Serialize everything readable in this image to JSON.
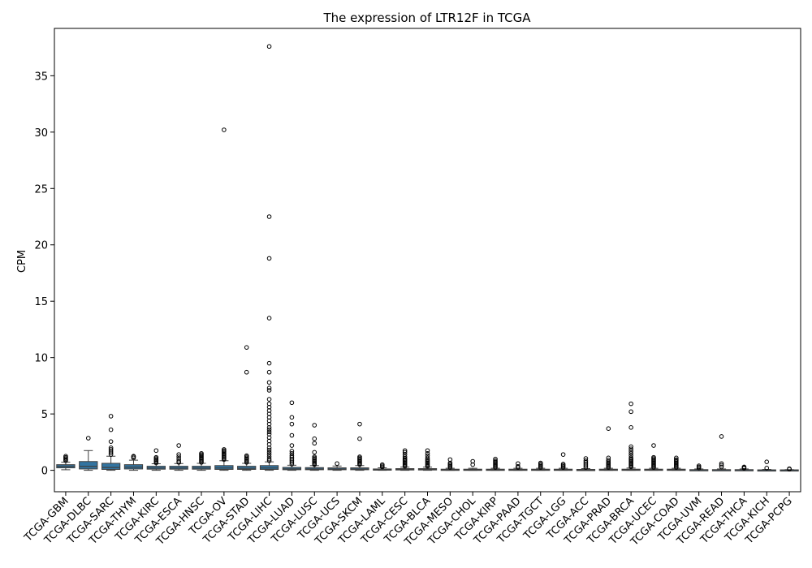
{
  "chart_data": {
    "type": "box",
    "title": "The expression of LTR12F in TCGA",
    "xlabel": "",
    "ylabel": "CPM",
    "ylim": [
      -1.9,
      39.2
    ],
    "yticks": [
      0,
      5,
      10,
      15,
      20,
      25,
      30,
      35
    ],
    "grid": false,
    "box_color": "#3274a1",
    "categories": [
      "TCGA-GBM",
      "TCGA-DLBC",
      "TCGA-SARC",
      "TCGA-THYM",
      "TCGA-KIRC",
      "TCGA-ESCA",
      "TCGA-HNSC",
      "TCGA-OV",
      "TCGA-STAD",
      "TCGA-LIHC",
      "TCGA-LUAD",
      "TCGA-LUSC",
      "TCGA-UCS",
      "TCGA-SKCM",
      "TCGA-LAML",
      "TCGA-CESC",
      "TCGA-BLCA",
      "TCGA-MESO",
      "TCGA-CHOL",
      "TCGA-KIRP",
      "TCGA-PAAD",
      "TCGA-TGCT",
      "TCGA-LGG",
      "TCGA-ACC",
      "TCGA-PRAD",
      "TCGA-BRCA",
      "TCGA-UCEC",
      "TCGA-COAD",
      "TCGA-UVM",
      "TCGA-READ",
      "TCGA-THCA",
      "TCGA-KICH",
      "TCGA-PCPG"
    ],
    "boxes": [
      {
        "whislo": 0.05,
        "q1": 0.22,
        "med": 0.35,
        "q3": 0.5,
        "whishi": 0.72,
        "fliers": [
          0.85,
          0.95,
          1.05,
          1.15,
          1.25
        ]
      },
      {
        "whislo": 0.0,
        "q1": 0.12,
        "med": 0.35,
        "q3": 0.78,
        "whishi": 1.75,
        "fliers": [
          2.85
        ]
      },
      {
        "whislo": 0.0,
        "q1": 0.08,
        "med": 0.25,
        "q3": 0.62,
        "whishi": 1.25,
        "fliers": [
          1.4,
          1.55,
          1.7,
          1.85,
          2.0,
          2.55,
          3.6,
          4.8
        ]
      },
      {
        "whislo": 0.0,
        "q1": 0.12,
        "med": 0.28,
        "q3": 0.5,
        "whishi": 0.9,
        "fliers": [
          1.1,
          1.2,
          1.25
        ]
      },
      {
        "whislo": 0.0,
        "q1": 0.1,
        "med": 0.2,
        "q3": 0.36,
        "whishi": 0.58,
        "fliers": [
          0.65,
          0.75,
          0.85,
          0.95,
          1.05,
          1.15,
          1.75
        ]
      },
      {
        "whislo": 0.0,
        "q1": 0.1,
        "med": 0.2,
        "q3": 0.36,
        "whishi": 0.6,
        "fliers": [
          0.7,
          0.8,
          1.0,
          1.2,
          1.4,
          2.2
        ]
      },
      {
        "whislo": 0.0,
        "q1": 0.1,
        "med": 0.2,
        "q3": 0.36,
        "whishi": 0.62,
        "fliers": [
          0.7,
          0.8,
          0.9,
          1.0,
          1.1,
          1.2,
          1.3,
          1.4,
          1.5
        ]
      },
      {
        "whislo": 0.0,
        "q1": 0.08,
        "med": 0.2,
        "q3": 0.42,
        "whishi": 0.85,
        "fliers": [
          0.95,
          1.05,
          1.15,
          1.25,
          1.35,
          1.45,
          1.55,
          1.65,
          1.75,
          1.85,
          30.2
        ]
      },
      {
        "whislo": 0.0,
        "q1": 0.08,
        "med": 0.18,
        "q3": 0.36,
        "whishi": 0.62,
        "fliers": [
          0.7,
          0.8,
          0.9,
          1.0,
          1.1,
          1.2,
          1.3,
          8.7,
          10.9
        ]
      },
      {
        "whislo": 0.0,
        "q1": 0.08,
        "med": 0.2,
        "q3": 0.42,
        "whishi": 0.75,
        "fliers": [
          0.85,
          1.0,
          1.2,
          1.4,
          1.6,
          1.8,
          2.0,
          2.3,
          2.6,
          2.9,
          3.2,
          3.4,
          3.6,
          3.8,
          4.1,
          4.4,
          4.7,
          5.0,
          5.3,
          5.6,
          5.9,
          6.3,
          7.1,
          7.3,
          7.8,
          8.7,
          9.5,
          13.5,
          18.8,
          22.5,
          37.6
        ]
      },
      {
        "whislo": 0.0,
        "q1": 0.05,
        "med": 0.13,
        "q3": 0.26,
        "whishi": 0.45,
        "fliers": [
          0.55,
          0.7,
          0.85,
          1.0,
          1.15,
          1.3,
          1.5,
          1.7,
          2.2,
          3.1,
          4.1,
          4.7,
          6.0
        ]
      },
      {
        "whislo": 0.0,
        "q1": 0.05,
        "med": 0.12,
        "q3": 0.24,
        "whishi": 0.42,
        "fliers": [
          0.5,
          0.6,
          0.7,
          0.8,
          0.9,
          1.0,
          1.1,
          1.2,
          1.6,
          2.4,
          2.8,
          4.0
        ]
      },
      {
        "whislo": 0.0,
        "q1": 0.05,
        "med": 0.12,
        "q3": 0.22,
        "whishi": 0.38,
        "fliers": [
          0.6
        ]
      },
      {
        "whislo": 0.0,
        "q1": 0.05,
        "med": 0.12,
        "q3": 0.22,
        "whishi": 0.42,
        "fliers": [
          0.5,
          0.6,
          0.7,
          0.8,
          0.9,
          1.0,
          1.1,
          1.2,
          2.8,
          4.1
        ]
      },
      {
        "whislo": 0.0,
        "q1": 0.02,
        "med": 0.06,
        "q3": 0.12,
        "whishi": 0.22,
        "fliers": [
          0.3,
          0.4,
          0.5
        ]
      },
      {
        "whislo": 0.0,
        "q1": 0.03,
        "med": 0.08,
        "q3": 0.15,
        "whishi": 0.28,
        "fliers": [
          0.35,
          0.45,
          0.55,
          0.65,
          0.75,
          0.85,
          0.95,
          1.05,
          1.2,
          1.4,
          1.6,
          1.75
        ]
      },
      {
        "whislo": 0.0,
        "q1": 0.03,
        "med": 0.08,
        "q3": 0.15,
        "whishi": 0.28,
        "fliers": [
          0.35,
          0.45,
          0.55,
          0.65,
          0.75,
          0.85,
          0.95,
          1.1,
          1.3,
          1.5,
          1.75
        ]
      },
      {
        "whislo": 0.0,
        "q1": 0.02,
        "med": 0.05,
        "q3": 0.1,
        "whishi": 0.18,
        "fliers": [
          0.25,
          0.35,
          0.45,
          0.55,
          0.65,
          0.95
        ]
      },
      {
        "whislo": 0.0,
        "q1": 0.02,
        "med": 0.05,
        "q3": 0.1,
        "whishi": 0.18,
        "fliers": [
          0.5,
          0.8
        ]
      },
      {
        "whislo": 0.0,
        "q1": 0.02,
        "med": 0.05,
        "q3": 0.1,
        "whishi": 0.18,
        "fliers": [
          0.25,
          0.35,
          0.45,
          0.55,
          0.65,
          0.75,
          0.85,
          1.0
        ]
      },
      {
        "whislo": 0.0,
        "q1": 0.02,
        "med": 0.05,
        "q3": 0.1,
        "whishi": 0.18,
        "fliers": [
          0.25,
          0.35,
          0.6
        ]
      },
      {
        "whislo": 0.0,
        "q1": 0.02,
        "med": 0.05,
        "q3": 0.1,
        "whishi": 0.18,
        "fliers": [
          0.25,
          0.35,
          0.45,
          0.55,
          0.65
        ]
      },
      {
        "whislo": 0.0,
        "q1": 0.02,
        "med": 0.05,
        "q3": 0.1,
        "whishi": 0.18,
        "fliers": [
          0.25,
          0.35,
          0.45,
          0.55,
          1.4
        ]
      },
      {
        "whislo": 0.0,
        "q1": 0.02,
        "med": 0.04,
        "q3": 0.08,
        "whishi": 0.15,
        "fliers": [
          0.25,
          0.4,
          0.55,
          0.7,
          0.85,
          1.05
        ]
      },
      {
        "whislo": 0.0,
        "q1": 0.02,
        "med": 0.05,
        "q3": 0.1,
        "whishi": 0.18,
        "fliers": [
          0.25,
          0.35,
          0.45,
          0.55,
          0.65,
          0.75,
          0.9,
          1.1,
          3.7
        ]
      },
      {
        "whislo": 0.0,
        "q1": 0.02,
        "med": 0.05,
        "q3": 0.1,
        "whishi": 0.2,
        "fliers": [
          0.3,
          0.4,
          0.5,
          0.6,
          0.7,
          0.8,
          0.9,
          1.0,
          1.1,
          1.3,
          1.5,
          1.7,
          1.9,
          2.1,
          3.8,
          5.2,
          5.9
        ]
      },
      {
        "whislo": 0.0,
        "q1": 0.02,
        "med": 0.05,
        "q3": 0.1,
        "whishi": 0.18,
        "fliers": [
          0.25,
          0.35,
          0.45,
          0.55,
          0.65,
          0.75,
          0.85,
          0.95,
          1.05,
          1.15,
          2.2
        ]
      },
      {
        "whislo": 0.0,
        "q1": 0.02,
        "med": 0.05,
        "q3": 0.1,
        "whishi": 0.18,
        "fliers": [
          0.25,
          0.35,
          0.45,
          0.55,
          0.65,
          0.75,
          0.85,
          0.95,
          1.1
        ]
      },
      {
        "whislo": 0.0,
        "q1": 0.01,
        "med": 0.03,
        "q3": 0.06,
        "whishi": 0.12,
        "fliers": [
          0.2,
          0.3,
          0.4
        ]
      },
      {
        "whislo": 0.0,
        "q1": 0.01,
        "med": 0.03,
        "q3": 0.06,
        "whishi": 0.12,
        "fliers": [
          0.3,
          0.45,
          0.6,
          3.0
        ]
      },
      {
        "whislo": 0.0,
        "q1": 0.01,
        "med": 0.03,
        "q3": 0.06,
        "whishi": 0.12,
        "fliers": [
          0.18,
          0.24,
          0.3
        ]
      },
      {
        "whislo": 0.0,
        "q1": 0.01,
        "med": 0.02,
        "q3": 0.04,
        "whishi": 0.08,
        "fliers": [
          0.2,
          0.75
        ]
      },
      {
        "whislo": 0.0,
        "q1": 0.01,
        "med": 0.02,
        "q3": 0.04,
        "whishi": 0.06,
        "fliers": [
          0.1,
          0.14
        ]
      }
    ]
  }
}
